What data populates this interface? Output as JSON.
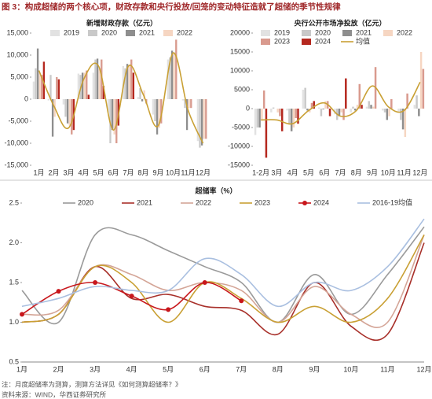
{
  "header": {
    "title": "图 3：构成超储的两个核心项，财政存款和央行投放/回笼的变动特征造就了超储的季节性规律"
  },
  "chart_data": [
    {
      "type": "bar",
      "title": "新增财政存款（亿元）",
      "categories": [
        "1月",
        "2月",
        "3月",
        "4月",
        "5月",
        "6月",
        "7月",
        "8月",
        "9月",
        "10月",
        "11月",
        "12月"
      ],
      "series": [
        {
          "name": "2019",
          "color": "#e2e2e2",
          "values": [
            4000,
            -300,
            -1200,
            5800,
            6000,
            -3000,
            7500,
            500,
            -3500,
            9000,
            -300,
            -9500
          ]
        },
        {
          "name": "2020",
          "color": "#c9c9c9",
          "values": [
            7000,
            5500,
            -4000,
            5500,
            9000,
            -10000,
            7000,
            2500,
            -5000,
            9500,
            -2000,
            -11000
          ]
        },
        {
          "name": "2021",
          "color": "#8e8e8e",
          "values": [
            11500,
            -8500,
            -5500,
            6000,
            9200,
            -7000,
            8000,
            -500,
            -8000,
            11000,
            -7000,
            -10500
          ]
        },
        {
          "name": "2022",
          "color": "#f6d6c2",
          "values": [
            6000,
            -4000,
            -6000,
            6000,
            7000,
            -8000,
            7500,
            2000,
            -6500,
            10500,
            -2000,
            -9000
          ]
        },
        {
          "color": "#d99a8e",
          "values": [
            5500,
            5000,
            -8000,
            6500,
            9000,
            -10000,
            9000,
            -1000,
            -5500,
            13500,
            -2000,
            -9000
          ]
        },
        {
          "color": "#b5281f",
          "values": [
            8500,
            4500,
            -7000,
            1000,
            3000,
            -6000,
            6000,
            null,
            null,
            null,
            null,
            null
          ]
        },
        {
          "color": "#c9a034",
          "line": true,
          "values": [
            6500,
            -1500,
            -6500,
            4500,
            7500,
            -7000,
            7500,
            1000,
            -6000,
            10500,
            -2500,
            -10000
          ]
        }
      ],
      "ylim": [
        -15000,
        15000
      ],
      "yticks": [
        {
          "value": -15000,
          "label": "-15,000"
        },
        {
          "value": -10000,
          "label": "-10,000"
        },
        {
          "value": -5000,
          "label": "-5,000"
        },
        0,
        {
          "value": 5000,
          "label": "5,000"
        },
        {
          "value": 10000,
          "label": "10,000"
        },
        {
          "value": 15000,
          "label": "15,000"
        }
      ]
    },
    {
      "type": "bar",
      "title": "央行公开市场净投放（亿元）",
      "categories": [
        "1-2月",
        "3月",
        "4月",
        "5月",
        "6月",
        "7月",
        "8月",
        "9月",
        "10月",
        "11月",
        "12月"
      ],
      "series": [
        {
          "name": "2019",
          "color": "#e2e2e2",
          "values": [
            -7000,
            -1000,
            -500,
            5000,
            300,
            -1500,
            -1000,
            500,
            -500,
            -1000,
            1000
          ]
        },
        {
          "name": "2020",
          "color": "#c9c9c9",
          "values": [
            -5000,
            300,
            -4000,
            5500,
            -2000,
            -3000,
            500,
            2000,
            -1000,
            -3000,
            3500
          ]
        },
        {
          "name": "2021",
          "color": "#8e8e8e",
          "values": [
            -5000,
            0,
            -6000,
            -500,
            -200,
            -2000,
            -500,
            1000,
            -3000,
            -5500,
            -2000
          ]
        },
        {
          "name": "2022",
          "color": "#f6d6c2",
          "values": [
            -3000,
            -1000,
            -5000,
            -1000,
            2000,
            -1000,
            1000,
            500,
            -2000,
            -7500,
            15000
          ]
        },
        {
          "name": "2023",
          "color": "#d99a8e",
          "values": [
            4800,
            -2000,
            -2500,
            1500,
            2000,
            -3000,
            6500,
            11000,
            2500,
            4000,
            10500
          ]
        },
        {
          "name": "2024",
          "color": "#b5281f",
          "values": [
            -13000,
            -6000,
            -4000,
            2000,
            -2000,
            8000,
            1000,
            null,
            null,
            null,
            null
          ]
        },
        {
          "name": "均值",
          "color": "#c9a034",
          "line": true,
          "values": [
            -3000,
            -3000,
            -4000,
            -500,
            1500,
            -2000,
            -500,
            6000,
            500,
            -500,
            7000
          ]
        }
      ],
      "ylim": [
        -15000,
        20000
      ],
      "yticks": [
        {
          "value": -15000,
          "label": "-15000"
        },
        {
          "value": -10000,
          "label": "-10000"
        },
        {
          "value": -5000,
          "label": "-5000"
        },
        0,
        5000,
        10000,
        15000,
        20000
      ]
    },
    {
      "type": "line",
      "title": "超储率（%）",
      "categories": [
        "1月",
        "2月",
        "3月",
        "4月",
        "5月",
        "6月",
        "7月",
        "8月",
        "9月",
        "10月",
        "11月",
        "12月"
      ],
      "series": [
        {
          "name": "2020",
          "color": "#9a9a9a",
          "values": [
            1.4,
            1.0,
            2.1,
            2.1,
            1.9,
            1.7,
            1.5,
            1.0,
            1.6,
            1.1,
            1.6,
            2.2
          ]
        },
        {
          "name": "2021",
          "color": "#a8302a",
          "values": [
            1.0,
            1.1,
            1.7,
            1.3,
            1.35,
            1.2,
            1.15,
            0.85,
            1.5,
            0.95,
            0.85,
            2.0
          ]
        },
        {
          "name": "2022",
          "color": "#d4a597",
          "values": [
            1.1,
            1.15,
            1.7,
            1.6,
            1.4,
            1.5,
            1.4,
            1.0,
            1.45,
            1.1,
            1.0,
            2.1
          ]
        },
        {
          "name": "2023",
          "color": "#c9a034",
          "values": [
            1.0,
            1.1,
            1.7,
            1.5,
            1.0,
            1.5,
            1.3,
            1.0,
            1.2,
            1.0,
            1.3,
            2.1
          ]
        },
        {
          "name": "2024",
          "color": "#c8171c",
          "markers": true,
          "values": [
            1.1,
            1.39,
            1.5,
            1.33,
            1.16,
            1.5,
            1.27,
            null,
            null,
            null,
            null,
            null
          ]
        },
        {
          "name": "2016-19均值",
          "color": "#a9bfe0",
          "values": [
            1.2,
            1.3,
            1.45,
            1.4,
            1.4,
            1.8,
            1.6,
            1.2,
            1.5,
            1.4,
            1.7,
            2.3
          ]
        }
      ],
      "ylim": [
        0.5,
        2.5
      ],
      "yticks": [
        0.5,
        {
          "value": 1.0,
          "label": "1.0"
        },
        1.5,
        {
          "value": 2.0,
          "label": "2.0"
        },
        2.5
      ]
    }
  ],
  "footer": {
    "note": "注：月度超储率为测算，测算方法详见《如何测算超储率？》",
    "source": "资料来源：WIND，华西证券研究所"
  }
}
